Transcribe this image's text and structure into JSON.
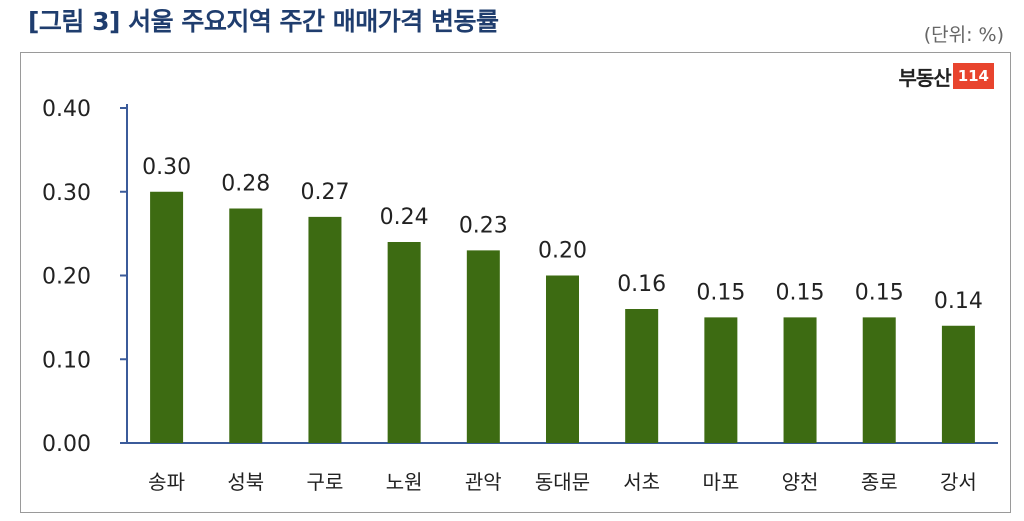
{
  "title": "[그림 3] 서울 주요지역 주간 매매가격 변동률",
  "unit": "(단위: %)",
  "logo": {
    "text": "부동산",
    "badge": "114"
  },
  "chart_data": {
    "type": "bar",
    "categories": [
      "송파",
      "성북",
      "구로",
      "노원",
      "관악",
      "동대문",
      "서초",
      "마포",
      "양천",
      "종로",
      "강서"
    ],
    "values": [
      0.3,
      0.28,
      0.27,
      0.24,
      0.23,
      0.2,
      0.16,
      0.15,
      0.15,
      0.15,
      0.14
    ],
    "data_labels": [
      "0.30",
      "0.28",
      "0.27",
      "0.24",
      "0.23",
      "0.20",
      "0.16",
      "0.15",
      "0.15",
      "0.15",
      "0.14"
    ],
    "yticks": [
      "0.00",
      "0.10",
      "0.20",
      "0.30",
      "0.40"
    ],
    "ylim": [
      0,
      0.4
    ],
    "grid": false,
    "bar_color": "#3d6b12"
  }
}
